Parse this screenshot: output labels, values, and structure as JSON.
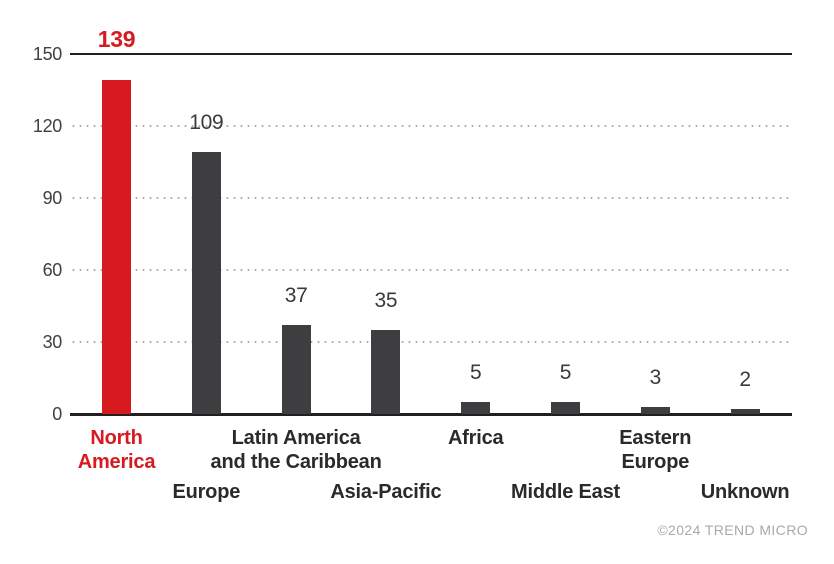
{
  "chart_data": {
    "type": "bar",
    "title": "",
    "xlabel": "",
    "ylabel": "",
    "categories": [
      "North America",
      "Europe",
      "Latin America and the Caribbean",
      "Asia-Pacific",
      "Africa",
      "Middle East",
      "Eastern Europe",
      "Unknown"
    ],
    "values": [
      139,
      109,
      37,
      35,
      5,
      5,
      3,
      2
    ],
    "bars": [
      {
        "category": "North America",
        "label_lines": [
          "North",
          "America"
        ],
        "value": 139,
        "label_row": 1,
        "highlight": true
      },
      {
        "category": "Europe",
        "label_lines": [
          "Europe"
        ],
        "value": 109,
        "label_row": 2,
        "highlight": false
      },
      {
        "category": "Latin America and the Caribbean",
        "label_lines": [
          "Latin America",
          "and the Caribbean"
        ],
        "value": 37,
        "label_row": 1,
        "highlight": false
      },
      {
        "category": "Asia-Pacific",
        "label_lines": [
          "Asia-Pacific"
        ],
        "value": 35,
        "label_row": 2,
        "highlight": false
      },
      {
        "category": "Africa",
        "label_lines": [
          "Africa"
        ],
        "value": 5,
        "label_row": 1,
        "highlight": false
      },
      {
        "category": "Middle East",
        "label_lines": [
          "Middle East"
        ],
        "value": 5,
        "label_row": 2,
        "highlight": false
      },
      {
        "category": "Eastern Europe",
        "label_lines": [
          "Eastern",
          "Europe"
        ],
        "value": 3,
        "label_row": 1,
        "highlight": false
      },
      {
        "category": "Unknown",
        "label_lines": [
          "Unknown"
        ],
        "value": 2,
        "label_row": 2,
        "highlight": false
      }
    ],
    "ylim": [
      0,
      150
    ],
    "yticks": [
      0,
      30,
      60,
      90,
      120,
      150
    ],
    "grid": "horizontal-dotted",
    "legend": null
  },
  "colors": {
    "highlight_bar": "#d71920",
    "bar": "#3e3e40",
    "value_label": "#3a3a3c",
    "highlight_label": "#d71920",
    "category_label": "#2b2a2b",
    "axis": "#231f20",
    "grid_dot": "#ababab",
    "tick_label": "#414042",
    "copyright": "#a7a9ab",
    "background": "#ffffff"
  },
  "footer": {
    "copyright_label": "©2024 TREND MICRO"
  }
}
